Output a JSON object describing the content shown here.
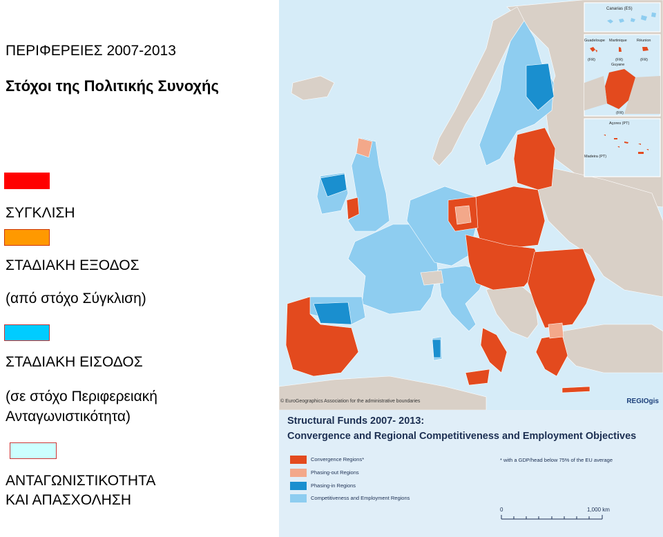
{
  "left": {
    "title": "ΠΕΡΙΦΕΡΕΙΕΣ 2007-2013",
    "subtitle": "Στόχοι της Πολιτικής Συνοχής",
    "legend": [
      {
        "label_lines": [
          "ΣΥΓΚΛΙΣΗ"
        ],
        "color": "#ff0000"
      },
      {
        "label_lines": [
          "ΣΤΑΔΙΑΚΗ ΕΞΟΔΟΣ",
          "(από στόχο Σύγκλιση)"
        ],
        "color": "#ff9900"
      },
      {
        "label_lines": [
          "ΣΤΑΔΙΑΚΗ ΕΙΣΟΔΟΣ",
          "(σε στόχο Περιφερειακή",
          "Ανταγωνιστικότητα)"
        ],
        "color": "#00ccff"
      },
      {
        "label_lines": [
          "ΑΝΤΑΓΩΝΙΣΤΙΚΟΤΗΤΑ",
          "ΚΑΙ ΑΠΑΣΧΟΛΗΣΗ"
        ],
        "color": "#ccffff"
      }
    ]
  },
  "map": {
    "insets": {
      "canarias": "Canarias (ES)",
      "guadeloupe": "Guadeloupe",
      "martinique": "Martinique",
      "reunion": "Réunion",
      "fr1": "(FR)",
      "fr2": "(FR)",
      "fr3": "(FR)",
      "guyane": "Guyane",
      "fr4": "(FR)",
      "acores": "Açores (PT)",
      "madeira": "Madeira (PT)"
    },
    "copyright": "© EuroGeographics Association for the administrative boundaries",
    "logo": "REGIOgis"
  },
  "colors": {
    "convergence": "#e34a1e",
    "phasing_out": "#f3a88a",
    "phasing_in": "#1a8fcf",
    "competitiveness": "#8ecdf0",
    "non_eu": "#d9d0c7",
    "sea": "#d6ecf8"
  },
  "legend_box": {
    "title": "Structural Funds 2007- 2013:",
    "subtitle": "Convergence and Regional Competitiveness and Employment Objectives",
    "footnote": "* with a GDP/head below 75% of the EU average",
    "items": [
      {
        "label": "Convergence Regions*",
        "color": "#e34a1e"
      },
      {
        "label": "Phasing-out Regions",
        "color": "#f3a88a"
      },
      {
        "label": "Phasing-in Regions",
        "color": "#1a8fcf"
      },
      {
        "label": "Competitiveness and Employment Regions",
        "color": "#8ecdf0"
      }
    ],
    "scale_zero": "0",
    "scale_max": "1,000 km"
  }
}
